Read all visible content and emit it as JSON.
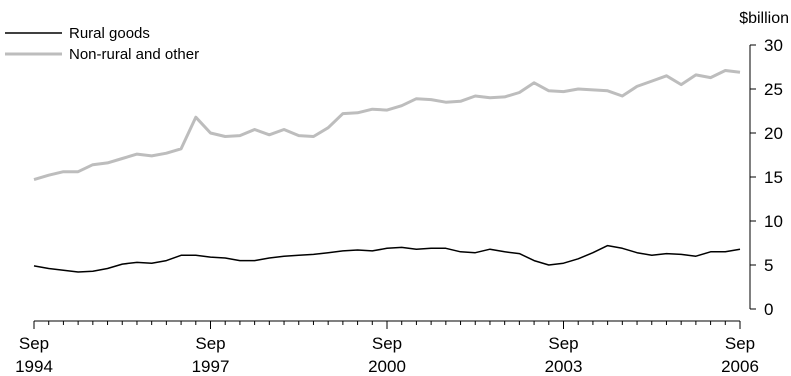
{
  "chart_data": {
    "type": "line",
    "title": "",
    "xlabel": "",
    "ylabel": "$billion",
    "ylim": [
      0,
      30
    ],
    "yticks": [
      0,
      5,
      10,
      15,
      20,
      25,
      30
    ],
    "grid": false,
    "legend_position": "top-left",
    "x_tick_labels": [
      {
        "month": "Sep",
        "year": "1994"
      },
      {
        "month": "Sep",
        "year": "1997"
      },
      {
        "month": "Sep",
        "year": "2000"
      },
      {
        "month": "Sep",
        "year": "2003"
      },
      {
        "month": "Sep",
        "year": "2006"
      }
    ],
    "x": [
      "Sep 1994",
      "Dec 1994",
      "Mar 1995",
      "Jun 1995",
      "Sep 1995",
      "Dec 1995",
      "Mar 1996",
      "Jun 1996",
      "Sep 1996",
      "Dec 1996",
      "Mar 1997",
      "Jun 1997",
      "Sep 1997",
      "Dec 1997",
      "Mar 1998",
      "Jun 1998",
      "Sep 1998",
      "Dec 1998",
      "Mar 1999",
      "Jun 1999",
      "Sep 1999",
      "Dec 1999",
      "Mar 2000",
      "Jun 2000",
      "Sep 2000",
      "Dec 2000",
      "Mar 2001",
      "Jun 2001",
      "Sep 2001",
      "Dec 2001",
      "Mar 2002",
      "Jun 2002",
      "Sep 2002",
      "Dec 2002",
      "Mar 2003",
      "Jun 2003",
      "Sep 2003",
      "Dec 2003",
      "Mar 2004",
      "Jun 2004",
      "Sep 2004",
      "Dec 2004",
      "Mar 2005",
      "Jun 2005",
      "Sep 2005",
      "Dec 2005",
      "Mar 2006",
      "Jun 2006",
      "Sep 2006"
    ],
    "series": [
      {
        "name": "Rural goods",
        "color": "#000000",
        "values": [
          4.9,
          4.6,
          4.4,
          4.2,
          4.3,
          4.6,
          5.1,
          5.3,
          5.2,
          5.5,
          6.1,
          6.1,
          5.9,
          5.8,
          5.5,
          5.5,
          5.8,
          6.0,
          6.1,
          6.2,
          6.4,
          6.6,
          6.7,
          6.6,
          6.9,
          7.0,
          6.8,
          6.9,
          6.9,
          6.5,
          6.4,
          6.8,
          6.5,
          6.3,
          5.5,
          5.0,
          5.2,
          5.7,
          6.4,
          7.2,
          6.9,
          6.4,
          6.1,
          6.3,
          6.2,
          6.0,
          6.5,
          6.5,
          6.8
        ]
      },
      {
        "name": "Non-rural and other",
        "color": "#bdbdbd",
        "values": [
          14.7,
          15.2,
          15.6,
          15.6,
          16.4,
          16.6,
          17.1,
          17.6,
          17.4,
          17.7,
          18.2,
          21.8,
          20.0,
          19.6,
          19.7,
          20.4,
          19.8,
          20.4,
          19.7,
          19.6,
          20.6,
          22.2,
          22.3,
          22.7,
          22.6,
          23.1,
          23.9,
          23.8,
          23.5,
          23.6,
          24.2,
          24.0,
          24.1,
          24.6,
          25.7,
          24.8,
          24.7,
          25.0,
          24.9,
          24.8,
          24.2,
          25.3,
          25.9,
          26.5,
          25.5,
          26.6,
          26.3,
          27.1,
          26.9
        ]
      }
    ]
  }
}
